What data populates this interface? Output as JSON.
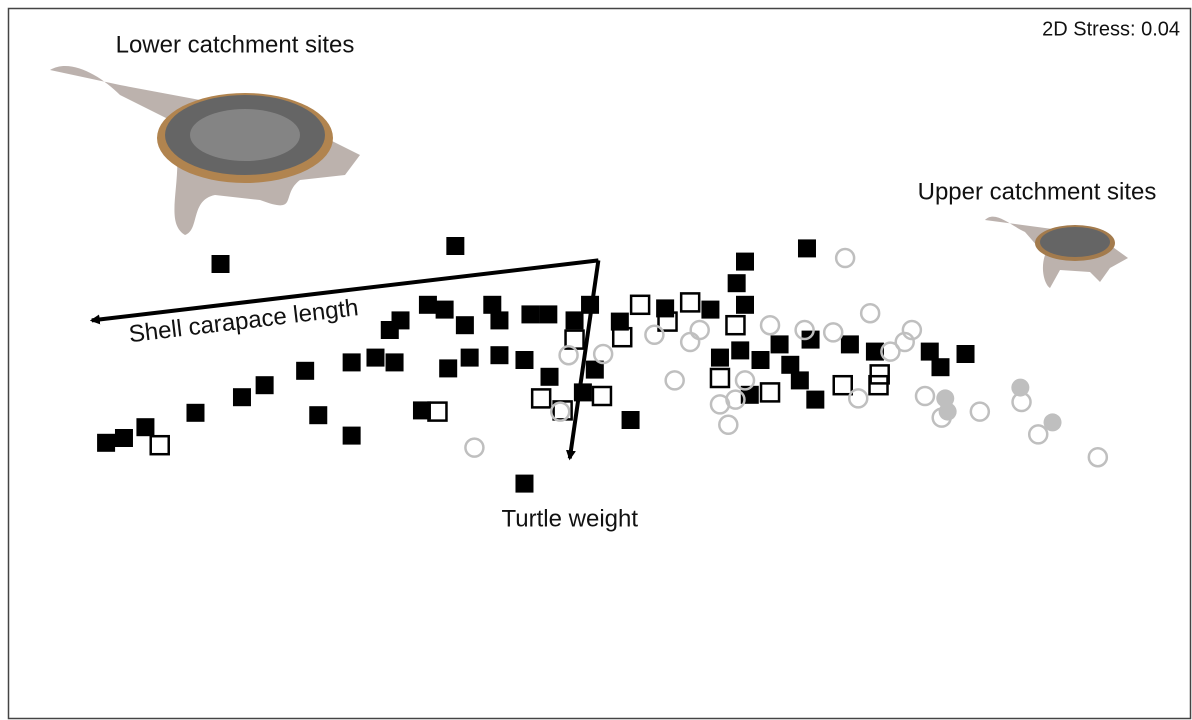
{
  "chart_data": {
    "type": "scatter",
    "annotations": {
      "stress": "2D Stress: 0.04",
      "lower": "Lower catchment sites",
      "upper": "Upper catchment sites"
    },
    "xlim": [
      0,
      100
    ],
    "ylim": [
      0,
      60
    ],
    "series": [
      {
        "color": "#000000",
        "marker": "square",
        "filled": true,
        "x": [
          18.5,
          38.2,
          67.7,
          62.5,
          61.8,
          8.9,
          10.4,
          12.2,
          16.4,
          20.3,
          22.2,
          25.6,
          26.7,
          29.5,
          35.4,
          44.0,
          52.9,
          46.1,
          49.9,
          48.9,
          35.9,
          37.3,
          33.6,
          32.7,
          39.0,
          41.3,
          41.9,
          44.5,
          46.0,
          49.5,
          48.2,
          52.0,
          29.5,
          31.5,
          33.1,
          37.6,
          39.4,
          41.9,
          44.0,
          59.6,
          62.5,
          60.4,
          62.1,
          63.8,
          66.3,
          67.1,
          68.4,
          62.9,
          65.4,
          68.0,
          71.3,
          73.4,
          78.0,
          81.0,
          78.9,
          55.8
        ],
        "values": [
          38.0,
          39.5,
          39.3,
          38.2,
          36.4,
          23.1,
          23.5,
          24.4,
          25.6,
          26.9,
          27.9,
          29.1,
          25.4,
          23.7,
          25.8,
          19.7,
          25.0,
          28.6,
          29.2,
          27.3,
          34.6,
          34.2,
          33.3,
          32.5,
          32.9,
          34.6,
          33.3,
          33.8,
          33.8,
          34.6,
          33.3,
          33.2,
          29.8,
          30.2,
          29.8,
          29.3,
          30.2,
          30.4,
          30.0,
          34.2,
          34.6,
          30.2,
          30.8,
          30.0,
          29.6,
          28.3,
          26.7,
          27.1,
          31.3,
          31.7,
          31.3,
          30.7,
          30.7,
          30.5,
          29.4,
          34.3
        ]
      },
      {
        "color": "#000000",
        "marker": "square",
        "filled": false,
        "x": [
          13.4,
          36.7,
          45.4,
          50.5,
          47.2,
          48.2,
          52.2,
          53.7,
          56.0,
          57.9,
          61.7,
          60.4,
          64.6,
          70.7,
          73.8,
          73.7
        ],
        "values": [
          22.9,
          25.7,
          26.8,
          27.0,
          25.8,
          31.7,
          31.9,
          34.6,
          33.2,
          34.8,
          32.9,
          28.5,
          27.3,
          27.9,
          28.8,
          27.9
        ]
      },
      {
        "color": "#bfbfbf",
        "marker": "circle",
        "filled": false,
        "x": [
          70.9,
          73.0,
          47.7,
          50.6,
          54.9,
          57.9,
          64.6,
          67.5,
          69.9,
          74.7,
          76.5,
          75.9,
          56.6,
          60.4,
          61.1,
          62.5,
          72.0,
          77.6,
          79.0,
          82.2,
          85.7,
          87.1,
          92.1,
          39.8,
          47.0,
          58.7,
          61.7
        ],
        "values": [
          38.5,
          33.9,
          30.4,
          30.5,
          32.1,
          31.5,
          32.9,
          32.5,
          32.3,
          30.7,
          32.5,
          31.5,
          28.3,
          26.3,
          24.6,
          28.3,
          26.8,
          27.0,
          25.2,
          25.7,
          26.5,
          23.8,
          21.9,
          22.7,
          25.7,
          32.5,
          26.7
        ]
      },
      {
        "color": "#bfbfbf",
        "marker": "circle",
        "filled": true,
        "x": [
          85.6,
          79.3,
          79.5,
          88.3
        ],
        "values": [
          27.7,
          26.8,
          25.7,
          24.8
        ]
      }
    ],
    "vectors": [
      {
        "label": "Shell carapace length",
        "x": [
          50.2,
          7.7
        ],
        "y": [
          38.3,
          33.3
        ]
      },
      {
        "label": "Turtle weight",
        "x": [
          50.2,
          47.8
        ],
        "y": [
          38.3,
          21.8
        ]
      }
    ]
  }
}
